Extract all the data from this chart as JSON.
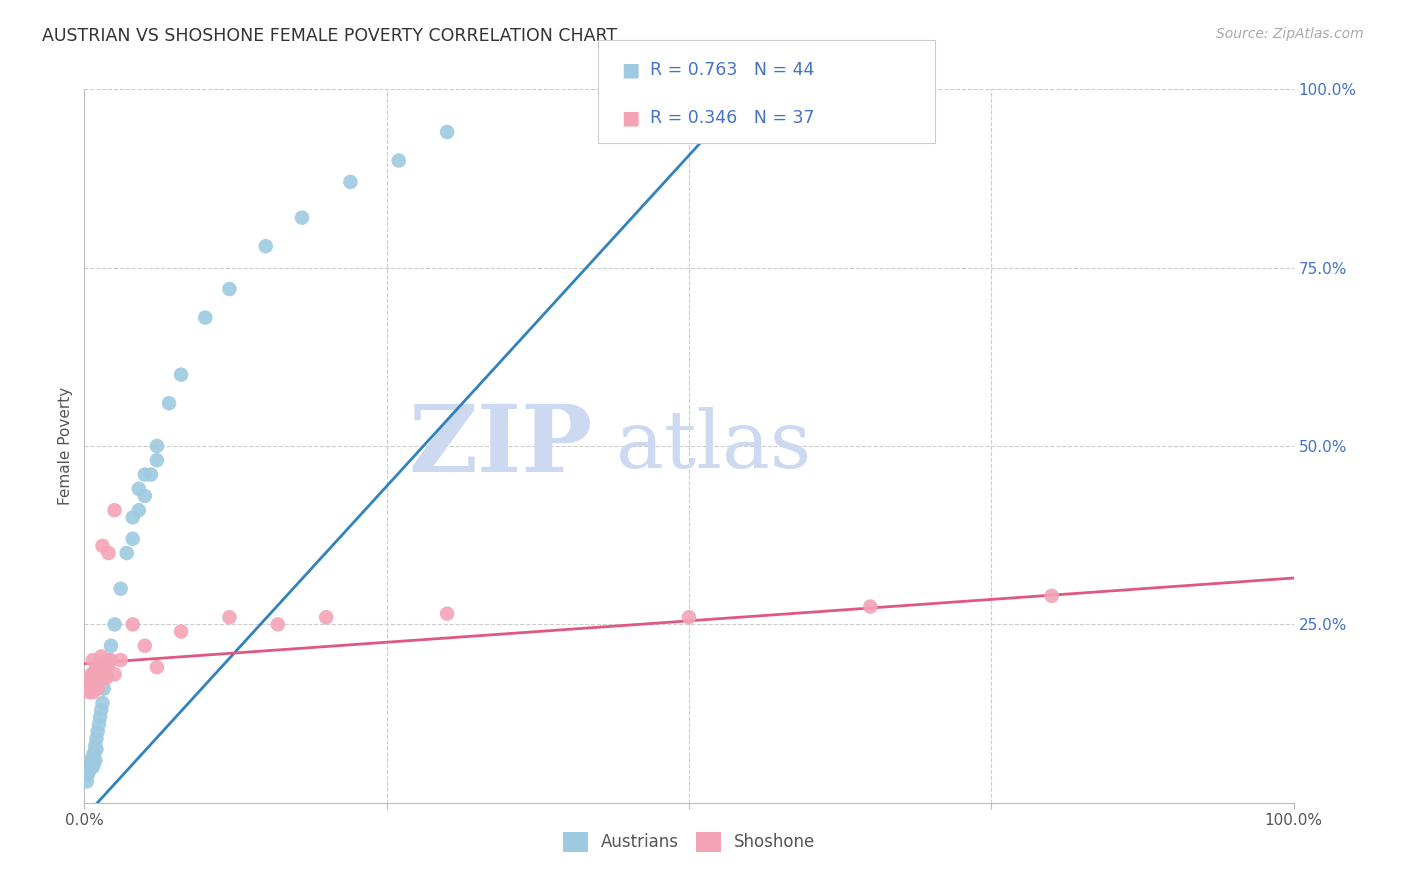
{
  "title": "AUSTRIAN VS SHOSHONE FEMALE POVERTY CORRELATION CHART",
  "source": "Source: ZipAtlas.com",
  "ylabel": "Female Poverty",
  "xlim": [
    0,
    1.0
  ],
  "ylim": [
    0,
    1.0
  ],
  "legend_r_austrians": "R = 0.763",
  "legend_n_austrians": "N = 44",
  "legend_r_shoshone": "R = 0.346",
  "legend_n_shoshone": "N = 37",
  "austrian_color": "#9ecae1",
  "shoshone_color": "#f4a3b5",
  "line_austrian_color": "#3182bd",
  "line_shoshone_color": "#e05880",
  "watermark_zip": "ZIP",
  "watermark_atlas": "atlas",
  "watermark_color": "#ccd9f0",
  "background_color": "#ffffff",
  "grid_color": "#cccccc",
  "austrians_x": [
    0.002,
    0.003,
    0.004,
    0.005,
    0.006,
    0.006,
    0.007,
    0.007,
    0.008,
    0.008,
    0.009,
    0.009,
    0.01,
    0.01,
    0.011,
    0.012,
    0.013,
    0.014,
    0.015,
    0.016,
    0.018,
    0.02,
    0.022,
    0.025,
    0.03,
    0.035,
    0.04,
    0.045,
    0.05,
    0.06,
    0.07,
    0.08,
    0.1,
    0.12,
    0.15,
    0.18,
    0.22,
    0.26,
    0.3,
    0.04,
    0.045,
    0.05,
    0.055,
    0.06
  ],
  "austrians_y": [
    0.03,
    0.04,
    0.045,
    0.05,
    0.055,
    0.06,
    0.065,
    0.05,
    0.055,
    0.07,
    0.06,
    0.08,
    0.075,
    0.09,
    0.1,
    0.11,
    0.12,
    0.13,
    0.14,
    0.16,
    0.18,
    0.2,
    0.22,
    0.25,
    0.3,
    0.35,
    0.4,
    0.44,
    0.46,
    0.5,
    0.56,
    0.6,
    0.68,
    0.72,
    0.78,
    0.82,
    0.87,
    0.9,
    0.94,
    0.37,
    0.41,
    0.43,
    0.46,
    0.48
  ],
  "shoshone_x": [
    0.002,
    0.003,
    0.004,
    0.005,
    0.005,
    0.006,
    0.007,
    0.007,
    0.008,
    0.008,
    0.009,
    0.01,
    0.011,
    0.012,
    0.013,
    0.014,
    0.015,
    0.016,
    0.018,
    0.02,
    0.022,
    0.025,
    0.03,
    0.04,
    0.05,
    0.06,
    0.08,
    0.12,
    0.16,
    0.2,
    0.3,
    0.5,
    0.65,
    0.8,
    0.015,
    0.02,
    0.025
  ],
  "shoshone_y": [
    0.17,
    0.165,
    0.155,
    0.175,
    0.16,
    0.18,
    0.155,
    0.2,
    0.17,
    0.165,
    0.185,
    0.175,
    0.16,
    0.195,
    0.175,
    0.205,
    0.18,
    0.19,
    0.175,
    0.195,
    0.2,
    0.18,
    0.2,
    0.25,
    0.22,
    0.19,
    0.24,
    0.26,
    0.25,
    0.26,
    0.265,
    0.26,
    0.275,
    0.29,
    0.36,
    0.35,
    0.41
  ],
  "line_austrian_x0": 0.0,
  "line_austrian_y0": -0.02,
  "line_austrian_x1": 0.55,
  "line_austrian_y1": 1.0,
  "line_shoshone_x0": 0.0,
  "line_shoshone_y0": 0.195,
  "line_shoshone_x1": 1.0,
  "line_shoshone_y1": 0.315
}
